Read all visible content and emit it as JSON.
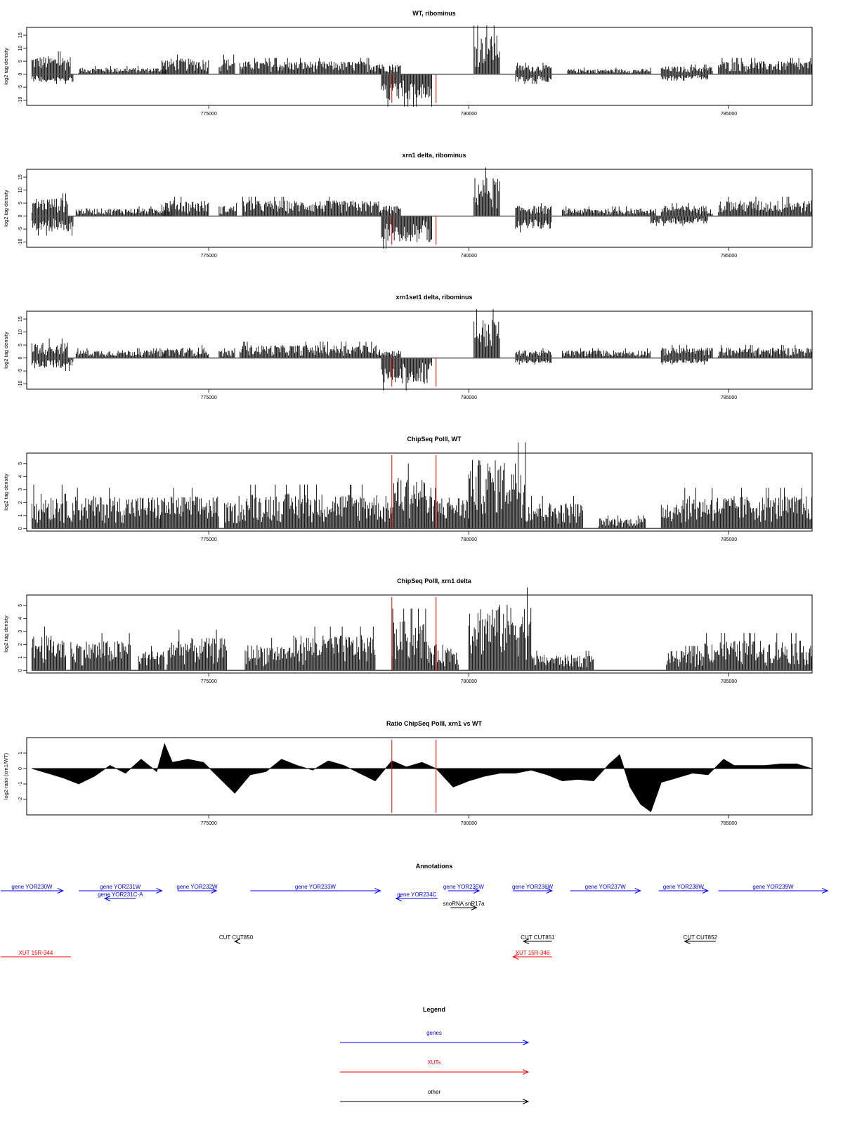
{
  "colors": {
    "genes": "#0000ff",
    "xuts": "#ff0000",
    "other": "#000000",
    "marker": "#ff0000",
    "bars": "#000000"
  },
  "chart_data": [
    {
      "type": "bar",
      "title": "WT, ribominus",
      "ylabel": "log2 tag density",
      "xlim": [
        771500,
        786600
      ],
      "ylim": [
        -12,
        18
      ],
      "x_ticks": [
        "775000",
        "780000",
        "785000"
      ],
      "y_ticks": [
        "15",
        "10",
        "5",
        "0",
        "-5",
        "-10"
      ],
      "markers_x": [
        778520,
        779370
      ],
      "positive_segments": [
        {
          "x": [
            771600,
            772350
          ],
          "level": 7
        },
        {
          "x": [
            772500,
            774200
          ],
          "level": 2.5
        },
        {
          "x": [
            774100,
            775000
          ],
          "level": 6
        },
        {
          "x": [
            775200,
            775500
          ],
          "level": 6
        },
        {
          "x": [
            775600,
            778300
          ],
          "level": 5
        },
        {
          "x": [
            778300,
            778700
          ],
          "level": 4
        },
        {
          "x": [
            780100,
            780600
          ],
          "level": 15
        },
        {
          "x": [
            780900,
            781600
          ],
          "level": 3.5
        },
        {
          "x": [
            781900,
            783500
          ],
          "level": 2
        },
        {
          "x": [
            783700,
            784700
          ],
          "level": 3
        },
        {
          "x": [
            784800,
            786600
          ],
          "level": 5
        }
      ],
      "negative_segments": [
        {
          "x": [
            771600,
            772400
          ],
          "level": -3
        },
        {
          "x": [
            778320,
            779300
          ],
          "level": -10
        },
        {
          "x": [
            780900,
            781600
          ],
          "level": -3
        },
        {
          "x": [
            783700,
            784600
          ],
          "level": -2
        }
      ]
    },
    {
      "type": "bar",
      "title": "xrn1 delta, ribominus",
      "ylabel": "log2 tag density",
      "xlim": [
        771500,
        786600
      ],
      "ylim": [
        -12,
        18
      ],
      "x_ticks": [
        "775000",
        "780000",
        "785000"
      ],
      "y_ticks": [
        "15",
        "10",
        "5",
        "0",
        "-5",
        "-10"
      ],
      "markers_x": [
        778520,
        779370
      ],
      "positive_segments": [
        {
          "x": [
            771600,
            772300
          ],
          "level": 7
        },
        {
          "x": [
            772450,
            774300
          ],
          "level": 3
        },
        {
          "x": [
            774100,
            775000
          ],
          "level": 6
        },
        {
          "x": [
            775200,
            775550
          ],
          "level": 4
        },
        {
          "x": [
            775650,
            778300
          ],
          "level": 6
        },
        {
          "x": [
            778300,
            778700
          ],
          "level": 4
        },
        {
          "x": [
            780100,
            780600
          ],
          "level": 15
        },
        {
          "x": [
            780900,
            781600
          ],
          "level": 4
        },
        {
          "x": [
            781800,
            783600
          ],
          "level": 3
        },
        {
          "x": [
            783700,
            784700
          ],
          "level": 4
        },
        {
          "x": [
            784800,
            786600
          ],
          "level": 6
        }
      ],
      "negative_segments": [
        {
          "x": [
            771600,
            772400
          ],
          "level": -6
        },
        {
          "x": [
            778320,
            779300
          ],
          "level": -10
        },
        {
          "x": [
            780900,
            781600
          ],
          "level": -5
        },
        {
          "x": [
            783500,
            784600
          ],
          "level": -3
        }
      ]
    },
    {
      "type": "bar",
      "title": "xrn1set1 delta, ribominus",
      "ylabel": "log2 tag density",
      "xlim": [
        771500,
        786600
      ],
      "ylim": [
        -12,
        18
      ],
      "x_ticks": [
        "775000",
        "780000",
        "785000"
      ],
      "y_ticks": [
        "15",
        "10",
        "5",
        "0",
        "-5",
        "-10"
      ],
      "markers_x": [
        778520,
        779370
      ],
      "positive_segments": [
        {
          "x": [
            771600,
            772300
          ],
          "level": 6
        },
        {
          "x": [
            772450,
            774200
          ],
          "level": 3
        },
        {
          "x": [
            774100,
            775000
          ],
          "level": 4
        },
        {
          "x": [
            775200,
            775500
          ],
          "level": 3
        },
        {
          "x": [
            775600,
            778300
          ],
          "level": 5
        },
        {
          "x": [
            778300,
            778700
          ],
          "level": 3
        },
        {
          "x": [
            780100,
            780600
          ],
          "level": 15
        },
        {
          "x": [
            780900,
            781600
          ],
          "level": 3
        },
        {
          "x": [
            781800,
            783500
          ],
          "level": 3
        },
        {
          "x": [
            783700,
            784700
          ],
          "level": 4
        },
        {
          "x": [
            784800,
            786600
          ],
          "level": 4
        }
      ],
      "negative_segments": [
        {
          "x": [
            771600,
            772400
          ],
          "level": -4
        },
        {
          "x": [
            778320,
            779300
          ],
          "level": -10
        },
        {
          "x": [
            780900,
            781600
          ],
          "level": -2
        },
        {
          "x": [
            783700,
            784600
          ],
          "level": -2
        }
      ]
    },
    {
      "type": "bar",
      "title": "ChipSeq PolII, WT",
      "ylabel": "log2 tag density",
      "xlim": [
        771500,
        786600
      ],
      "ylim": [
        -0.2,
        5.8
      ],
      "x_ticks": [
        "775000",
        "780000",
        "785000"
      ],
      "y_ticks": [
        "5",
        "4",
        "3",
        "2",
        "1",
        "0"
      ],
      "markers_x": [
        778520,
        779370
      ],
      "positive_segments": [
        {
          "x": [
            771600,
            772300
          ],
          "level": 2.7
        },
        {
          "x": [
            772300,
            774100
          ],
          "level": 2.5
        },
        {
          "x": [
            774100,
            775200
          ],
          "level": 2.5
        },
        {
          "x": [
            775300,
            775700
          ],
          "level": 2
        },
        {
          "x": [
            775700,
            778300
          ],
          "level": 2.7
        },
        {
          "x": [
            778300,
            778520
          ],
          "level": 2
        },
        {
          "x": [
            778520,
            779200
          ],
          "level": 4
        },
        {
          "x": [
            779200,
            780000
          ],
          "level": 2.5
        },
        {
          "x": [
            780000,
            781100
          ],
          "level": 5.3
        },
        {
          "x": [
            781100,
            782200
          ],
          "level": 2
        },
        {
          "x": [
            782500,
            783400
          ],
          "level": 0.8
        },
        {
          "x": [
            783700,
            784100
          ],
          "level": 2.2
        },
        {
          "x": [
            784100,
            786600
          ],
          "level": 2.5
        }
      ],
      "negative_segments": []
    },
    {
      "type": "bar",
      "title": "ChipSeq PolII, xrn1 delta",
      "ylabel": "log2 tag density",
      "xlim": [
        771500,
        786600
      ],
      "ylim": [
        -0.2,
        5.8
      ],
      "x_ticks": [
        "775000",
        "780000",
        "785000"
      ],
      "y_ticks": [
        "5",
        "4",
        "3",
        "2",
        "1",
        "0"
      ],
      "markers_x": [
        778520,
        779370
      ],
      "positive_segments": [
        {
          "x": [
            771600,
            772250
          ],
          "level": 2.7
        },
        {
          "x": [
            772350,
            773500
          ],
          "level": 2.3
        },
        {
          "x": [
            773650,
            774150
          ],
          "level": 1.5
        },
        {
          "x": [
            774200,
            775350
          ],
          "level": 2.5
        },
        {
          "x": [
            775700,
            776600
          ],
          "level": 2
        },
        {
          "x": [
            776600,
            778200
          ],
          "level": 2.7
        },
        {
          "x": [
            778520,
            779200
          ],
          "level": 3.8
        },
        {
          "x": [
            779200,
            779800
          ],
          "level": 2
        },
        {
          "x": [
            780000,
            781200
          ],
          "level": 5.1
        },
        {
          "x": [
            781200,
            782400
          ],
          "level": 1.2
        },
        {
          "x": [
            783800,
            784500
          ],
          "level": 1.5
        },
        {
          "x": [
            784500,
            786600
          ],
          "level": 2.3
        }
      ],
      "negative_segments": []
    },
    {
      "type": "area",
      "title": "Ratio ChipSeq PolII, xrn1 vs WT",
      "ylabel": "log2 ratio (xrn1/WT)",
      "xlim": [
        771500,
        786600
      ],
      "ylim": [
        -3,
        2
      ],
      "x_ticks": [
        "775000",
        "780000",
        "785000"
      ],
      "y_ticks": [
        "1",
        "0",
        "-1",
        "-2"
      ],
      "markers_x": [
        778520,
        779370
      ],
      "x": [
        771600,
        771900,
        772200,
        772500,
        772800,
        773100,
        773400,
        773700,
        774000,
        774150,
        774300,
        774600,
        774900,
        775200,
        775500,
        775800,
        776100,
        776400,
        776700,
        777000,
        777300,
        777600,
        777900,
        778200,
        778520,
        778800,
        779100,
        779370,
        779700,
        780000,
        780300,
        780600,
        780900,
        781200,
        781500,
        781800,
        782100,
        782400,
        782700,
        782900,
        783100,
        783300,
        783500,
        783700,
        784000,
        784300,
        784600,
        784900,
        785100,
        785400,
        785700,
        786000,
        786300,
        786600
      ],
      "values": [
        0,
        -0.3,
        -0.6,
        -1,
        -0.5,
        0.2,
        -0.3,
        0.6,
        -0.2,
        1.6,
        0.4,
        0.6,
        0.4,
        -0.6,
        -1.6,
        -0.4,
        -0.2,
        0.6,
        0.2,
        -0.1,
        0.5,
        0.2,
        -0.3,
        -0.8,
        0.5,
        0.1,
        0.4,
        0,
        -1.2,
        -0.8,
        -0.5,
        -0.3,
        -0.3,
        -0.1,
        -0.4,
        -0.8,
        -0.7,
        -0.8,
        0.3,
        0.9,
        -1.2,
        -2.3,
        -2.8,
        -0.9,
        -0.6,
        -0.3,
        -0.4,
        0.6,
        0.2,
        0.2,
        0.2,
        0.3,
        0.3,
        0
      ]
    }
  ],
  "annotations": {
    "title": "Annotations",
    "genes": [
      {
        "label": "gene YOR230W",
        "x": [
          771000,
          772200
        ],
        "dir": "right",
        "row": 0
      },
      {
        "label": "gene YOR231W",
        "x": [
          772500,
          774100
        ],
        "dir": "right",
        "row": 0
      },
      {
        "label": "gene YOR231C-A",
        "x": [
          773000,
          773600
        ],
        "dir": "left",
        "row": 1
      },
      {
        "label": "gene YOR232W",
        "x": [
          774400,
          775150
        ],
        "dir": "right",
        "row": 0
      },
      {
        "label": "gene YOR233W",
        "x": [
          775800,
          778300
        ],
        "dir": "right",
        "row": 0
      },
      {
        "label": "gene YOR234C",
        "x": [
          778600,
          779400
        ],
        "dir": "left",
        "row": 1
      },
      {
        "label": "gene YOR235W",
        "x": [
          779600,
          780200
        ],
        "dir": "right",
        "row": 0
      },
      {
        "label": "gene YOR236W",
        "x": [
          780850,
          781600
        ],
        "dir": "right",
        "row": 0
      },
      {
        "label": "gene YOR237W",
        "x": [
          781950,
          783300
        ],
        "dir": "right",
        "row": 0
      },
      {
        "label": "gene YOR238W",
        "x": [
          783650,
          784600
        ],
        "dir": "right",
        "row": 0
      },
      {
        "label": "gene YOR239W",
        "x": [
          784800,
          786900
        ],
        "dir": "right",
        "row": 0
      }
    ],
    "other": [
      {
        "label": "snoRNA snR17a",
        "x": [
          779650,
          780150
        ],
        "dir": "right",
        "row": 2
      },
      {
        "label": "CUT CUT850",
        "x": [
          775500,
          775550
        ],
        "dir": "left",
        "row": 3
      },
      {
        "label": "CUT CUT851",
        "x": [
          781050,
          781600
        ],
        "dir": "left",
        "row": 3
      },
      {
        "label": "CUT CUT852",
        "x": [
          784150,
          784750
        ],
        "dir": "left",
        "row": 3
      }
    ],
    "xuts": [
      {
        "label": "XUT 15R-344",
        "x": [
          771000,
          772350
        ],
        "dir": "none",
        "row": 4
      },
      {
        "label": "XUT 15R-346",
        "x": [
          780850,
          781600
        ],
        "dir": "left",
        "row": 4
      }
    ]
  },
  "legend": {
    "title": "Legend",
    "items": [
      {
        "label": "genes",
        "color": "#0000ff"
      },
      {
        "label": "XUTs",
        "color": "#ff0000"
      },
      {
        "label": "other",
        "color": "#000000"
      }
    ]
  }
}
